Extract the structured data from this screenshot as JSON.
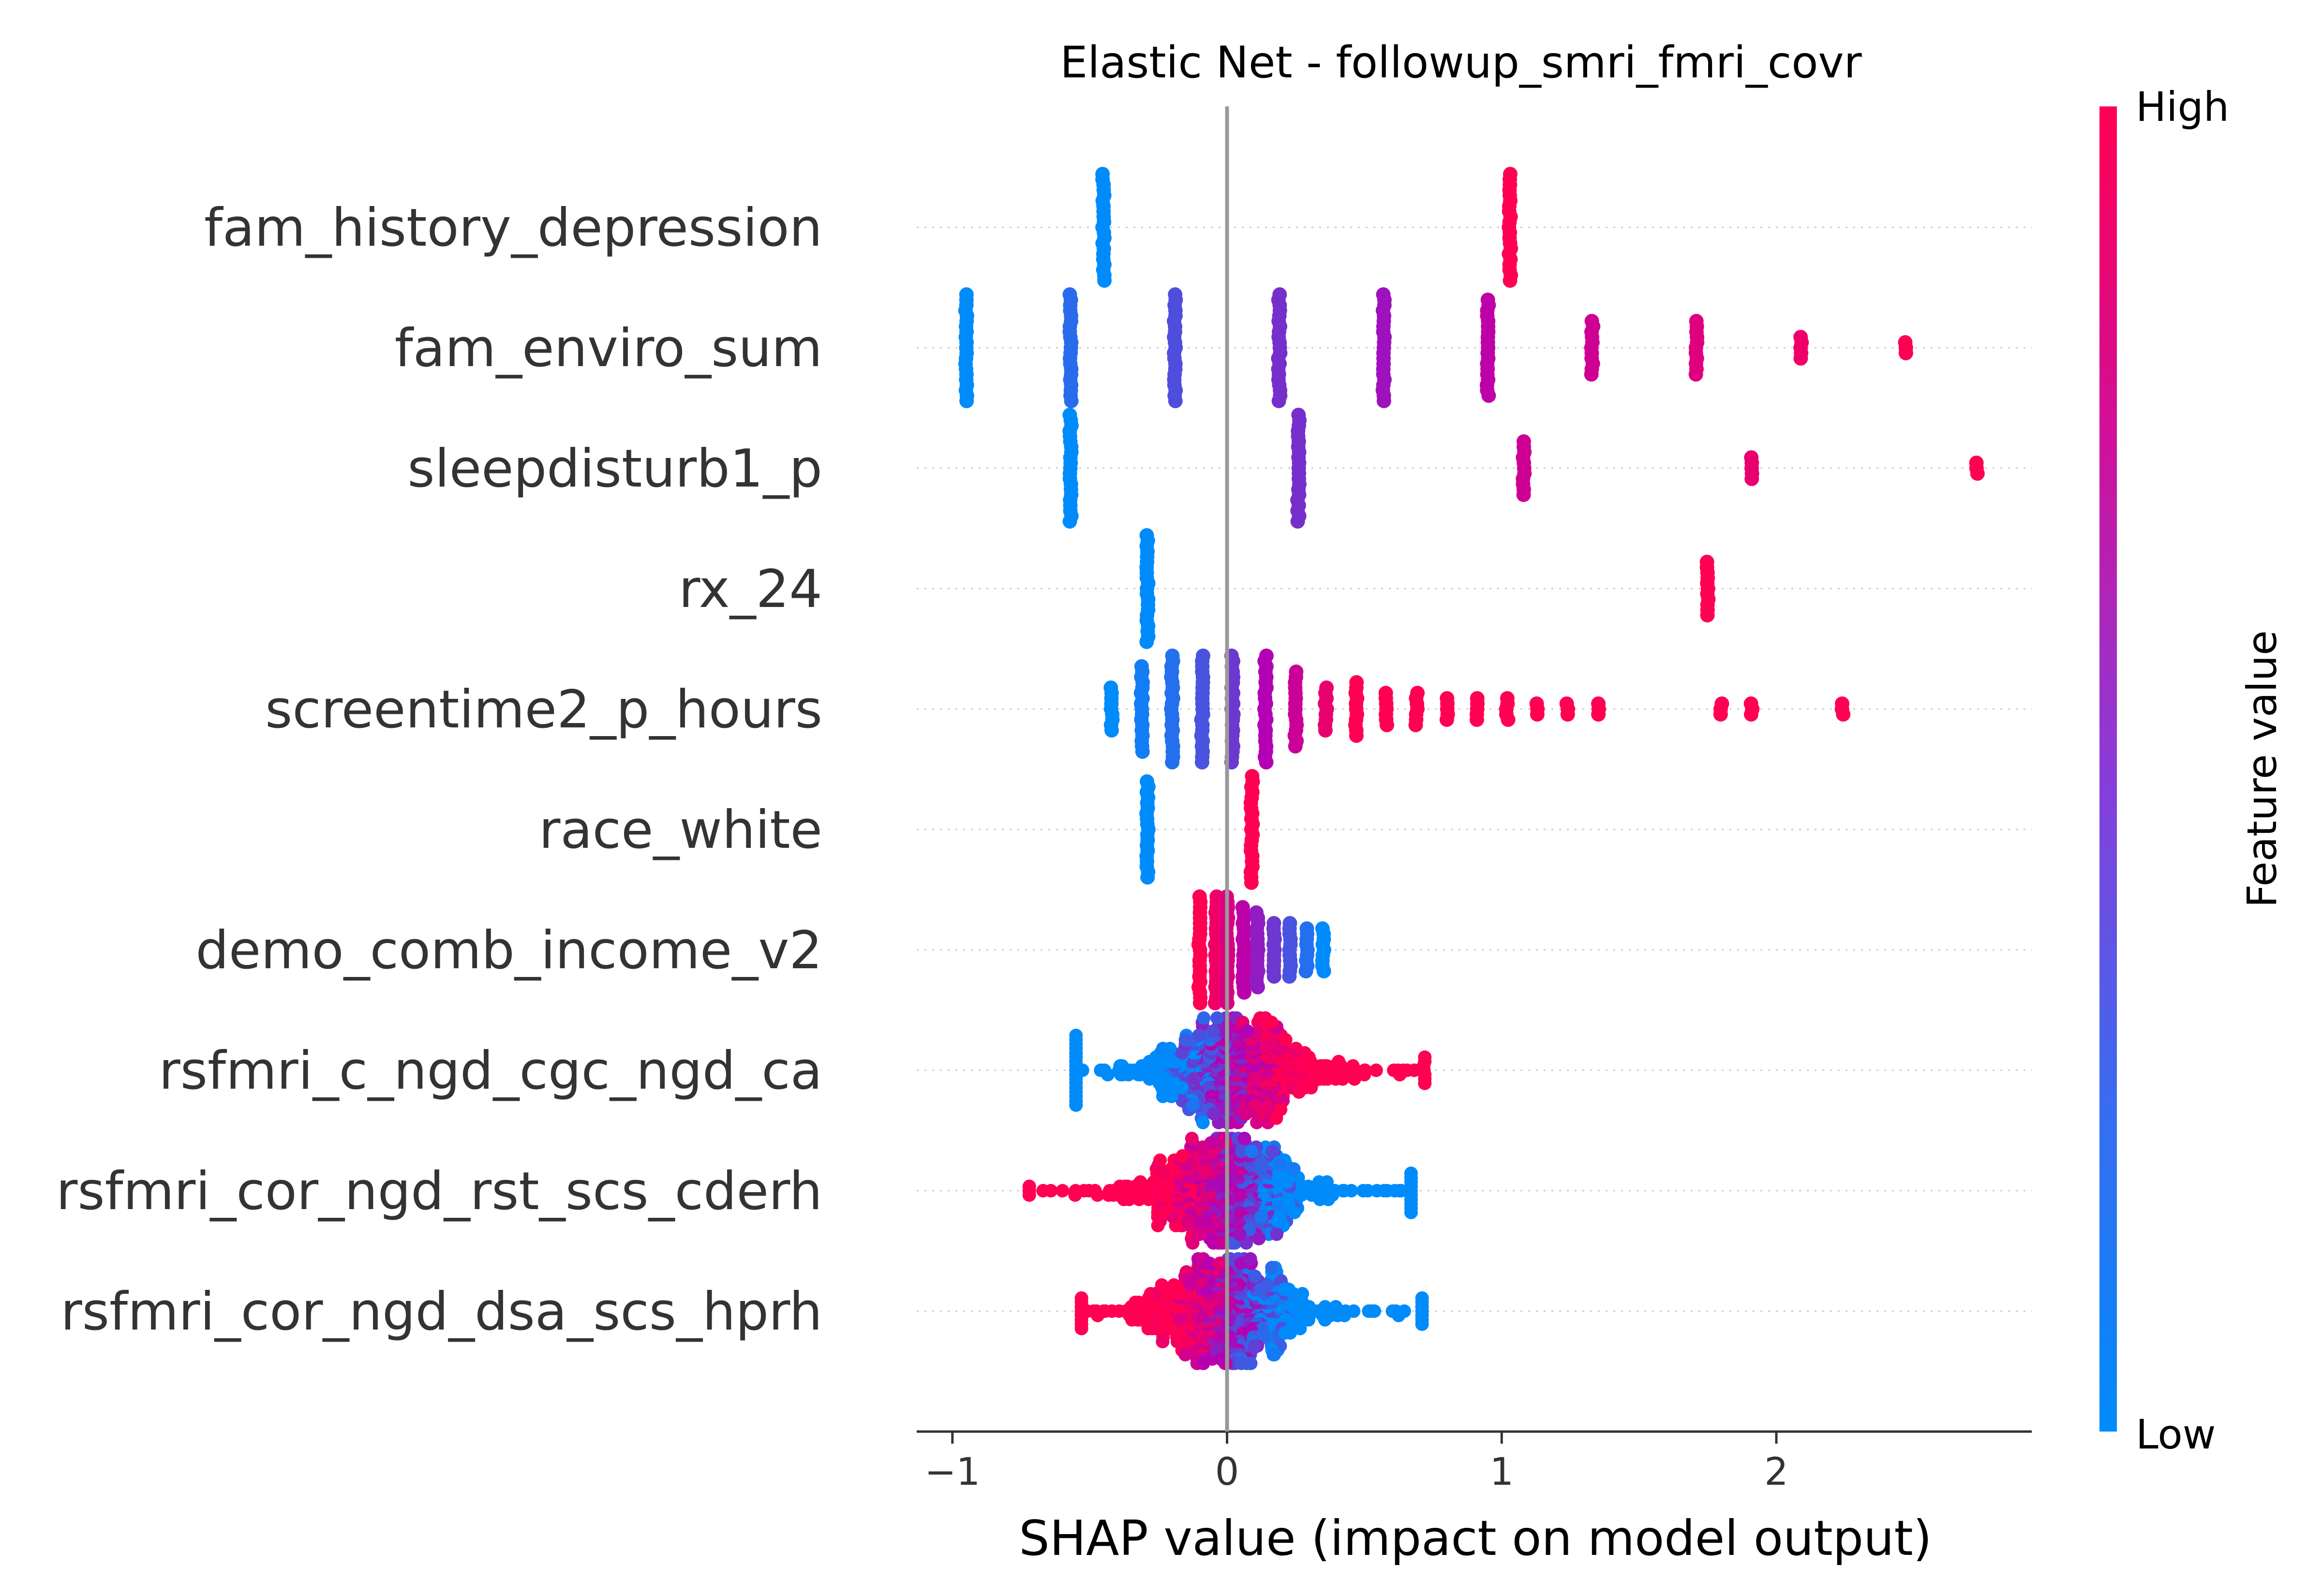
{
  "chart_data": {
    "type": "scatter",
    "title": "Elastic Net - followup_smri_fmri_covr",
    "xlabel": "SHAP value (impact on model output)",
    "xlim": [
      -1.13,
      2.93
    ],
    "xticks": [
      {
        "value": -1,
        "label": "−1"
      },
      {
        "value": 0,
        "label": "0"
      },
      {
        "value": 1,
        "label": "1"
      },
      {
        "value": 2,
        "label": "2"
      }
    ],
    "colorbar": {
      "label": "Feature value",
      "high": "High",
      "low": "Low"
    },
    "colors": {
      "low": "#008bfb",
      "mid": "#b400b4",
      "high": "#ff0052",
      "zero_line": "#999999",
      "axis": "#333333",
      "grid": "#cccccc"
    },
    "features": [
      {
        "name": "fam_history_depression",
        "type": "clusters",
        "clusters": [
          [
            -0.45,
            0,
            300
          ],
          [
            1.03,
            1,
            150
          ]
        ]
      },
      {
        "name": "fam_enviro_sum",
        "type": "clusters",
        "clusters": [
          [
            -0.95,
            0.0,
            220
          ],
          [
            -0.57,
            0.11,
            260
          ],
          [
            -0.19,
            0.22,
            200
          ],
          [
            0.19,
            0.33,
            180
          ],
          [
            0.57,
            0.44,
            140
          ],
          [
            0.95,
            0.56,
            100
          ],
          [
            1.33,
            0.67,
            60
          ],
          [
            1.71,
            0.78,
            50
          ],
          [
            2.09,
            0.89,
            15
          ],
          [
            2.47,
            1.0,
            10
          ]
        ]
      },
      {
        "name": "sleepdisturb1_p",
        "type": "clusters",
        "clusters": [
          [
            -0.57,
            0.0,
            260
          ],
          [
            0.26,
            0.33,
            160
          ],
          [
            1.08,
            0.67,
            60
          ],
          [
            1.91,
            0.85,
            15
          ],
          [
            2.73,
            1.0,
            8
          ]
        ]
      },
      {
        "name": "rx_24",
        "type": "clusters",
        "clusters": [
          [
            -0.29,
            0,
            260
          ],
          [
            1.75,
            1,
            50
          ]
        ]
      },
      {
        "name": "screentime2_p_hours",
        "type": "clusters",
        "clusters": [
          [
            -0.42,
            0.0,
            40
          ],
          [
            -0.31,
            0.05,
            90
          ],
          [
            -0.2,
            0.1,
            200
          ],
          [
            -0.09,
            0.2,
            160
          ],
          [
            0.02,
            0.3,
            140
          ],
          [
            0.14,
            0.5,
            110
          ],
          [
            0.25,
            0.65,
            80
          ],
          [
            0.36,
            0.85,
            40
          ],
          [
            0.47,
            1.0,
            50
          ],
          [
            0.58,
            1.0,
            25
          ],
          [
            0.69,
            1.0,
            30
          ],
          [
            0.8,
            1.0,
            20
          ],
          [
            0.91,
            1.0,
            15
          ],
          [
            1.02,
            1.0,
            15
          ],
          [
            1.13,
            1.0,
            12
          ],
          [
            1.24,
            1.0,
            12
          ],
          [
            1.35,
            1.0,
            12
          ],
          [
            1.8,
            1.0,
            12
          ],
          [
            1.91,
            1.0,
            12
          ],
          [
            2.24,
            1.0,
            12
          ]
        ]
      },
      {
        "name": "race_white",
        "type": "clusters",
        "clusters": [
          [
            -0.29,
            0,
            100
          ],
          [
            0.09,
            1,
            200
          ]
        ]
      },
      {
        "name": "demo_comb_income_v2",
        "type": "clusters",
        "clusters": [
          [
            -0.1,
            1.0,
            120
          ],
          [
            -0.04,
            0.9,
            150
          ],
          [
            0.0,
            0.75,
            140
          ],
          [
            0.06,
            0.55,
            90
          ],
          [
            0.11,
            0.4,
            80
          ],
          [
            0.17,
            0.3,
            60
          ],
          [
            0.23,
            0.2,
            50
          ],
          [
            0.29,
            0.1,
            40
          ],
          [
            0.35,
            0.0,
            40
          ]
        ]
      },
      {
        "name": "rsfmri_c_ngd_cgc_ngd_ca",
        "type": "dist",
        "center": 0.02,
        "spread": 0.16,
        "trend": 1,
        "min": -0.55,
        "max": 0.72
      },
      {
        "name": "rsfmri_cor_ngd_rst_scs_cderh",
        "type": "dist",
        "center": 0.0,
        "spread": 0.16,
        "trend": -1,
        "min": -0.72,
        "max": 0.67
      },
      {
        "name": "rsfmri_cor_ngd_dsa_scs_hprh",
        "type": "dist",
        "center": 0.0,
        "spread": 0.15,
        "trend": -1,
        "min": -0.53,
        "max": 0.71
      }
    ]
  }
}
